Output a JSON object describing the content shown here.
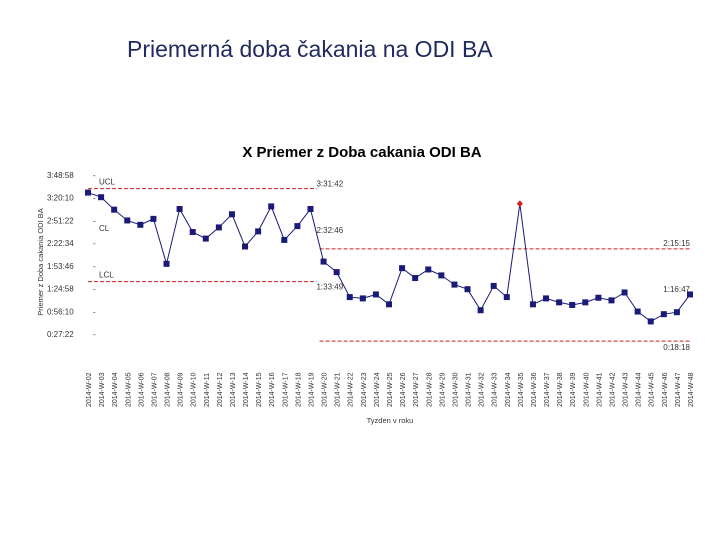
{
  "slide": {
    "title": "Priemerná doba čakania na ODI BA"
  },
  "colors": {
    "series": "#1a1a78",
    "limit_line": "#cc2222",
    "out_of_control_point": "#cc2222",
    "slide_title": "#1f2a5e"
  },
  "chart_data": {
    "type": "line",
    "title": "X Priemer z Doba cakania ODI BA",
    "xlabel": "Tyzden v roku",
    "ylabel": "Priemer z Doba cakania ODI BA",
    "y_ticks": [
      "3:48:58",
      "3:20:10",
      "2:51:22",
      "2:22:34",
      "1:53:46",
      "1:24:58",
      "0:56:10",
      "0:27:22"
    ],
    "y_tick_seconds": [
      13738,
      12010,
      10282,
      8554,
      6826,
      5098,
      3370,
      1642
    ],
    "ylim": [
      1642,
      13738
    ],
    "grid": false,
    "legend": "none",
    "categories": [
      "2014-W-02",
      "2014-W-03",
      "2014-W-04",
      "2014-W-05",
      "2014-W-06",
      "2014-W-07",
      "2014-W-08",
      "2014-W-09",
      "2014-W-10",
      "2014-W-11",
      "2014-W-12",
      "2014-W-13",
      "2014-W-14",
      "2014-W-15",
      "2014-W-16",
      "2014-W-17",
      "2014-W-18",
      "2014-W-19",
      "2014-W-20",
      "2014-W-21",
      "2014-W-22",
      "2014-W-23",
      "2014-W-24",
      "2014-W-25",
      "2014-W-26",
      "2014-W-27",
      "2014-W-28",
      "2014-W-29",
      "2014-W-30",
      "2014-W-31",
      "2014-W-32",
      "2014-W-33",
      "2014-W-34",
      "2014-W-35",
      "2014-W-36",
      "2014-W-37",
      "2014-W-38",
      "2014-W-39",
      "2014-W-40",
      "2014-W-41",
      "2014-W-42",
      "2014-W-43",
      "2014-W-44",
      "2014-W-45",
      "2014-W-46",
      "2014-W-47",
      "2014-W-48"
    ],
    "series": [
      {
        "values": [
          12400,
          12050,
          11100,
          10280,
          9950,
          10400,
          6980,
          11150,
          9400,
          8900,
          9750,
          10750,
          8300,
          9450,
          11350,
          8800,
          9850,
          11150,
          7150,
          6350,
          4450,
          4350,
          4650,
          3900,
          6650,
          5900,
          6550,
          6100,
          5400,
          5050,
          3450,
          5300,
          4450,
          11550,
          3900,
          4350,
          4050,
          3850,
          4050,
          4400,
          4200,
          4800,
          3350,
          2600,
          3150,
          3300,
          4650
        ],
        "out_of_control_index": 33
      }
    ],
    "control_limits": [
      {
        "segment": 1,
        "x_start": "2014-W-02",
        "x_end": "2014-W-19",
        "UCL": "3:31:42",
        "CL": "2:32:46",
        "LCL": "1:33:49",
        "UCL_seconds": 12702,
        "CL_seconds": 9166,
        "LCL_seconds": 5629
      },
      {
        "segment": 2,
        "x_start": "2014-W-20",
        "x_end": "2014-W-48",
        "UCL": "2:15:15",
        "CL": "1:16:47",
        "LCL": "0:18:18",
        "UCL_seconds": 8115,
        "CL_seconds": 4607,
        "LCL_seconds": 1098
      }
    ],
    "limit_names": {
      "ucl": "UCL",
      "cl": "CL",
      "lcl": "LCL"
    }
  }
}
